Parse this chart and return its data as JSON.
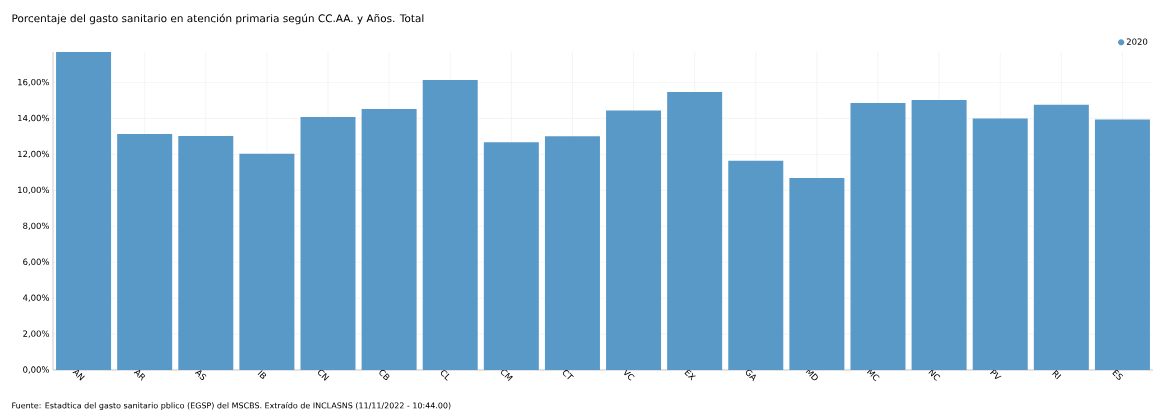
{
  "chart_data": {
    "type": "bar",
    "title": "Porcentaje del gasto sanitario en atención primaria según CC.AA. y Años. Total",
    "categories": [
      "AN",
      "AR",
      "AS",
      "IB",
      "CN",
      "CB",
      "CL",
      "CM",
      "CT",
      "VC",
      "EX",
      "GA",
      "MD",
      "MC",
      "NC",
      "PV",
      "RI",
      "ES"
    ],
    "series": [
      {
        "name": "2020",
        "color": "#5899c7",
        "values": [
          17.7,
          13.13,
          13.03,
          12.04,
          14.08,
          14.53,
          16.14,
          12.68,
          13.01,
          14.45,
          15.48,
          11.65,
          10.68,
          14.86,
          15.03,
          14.0,
          14.76,
          13.94
        ]
      }
    ],
    "ylim": [
      0,
      17.7
    ],
    "yticks": [
      {
        "value": 0,
        "label": "0,00%"
      },
      {
        "value": 2,
        "label": "2,00%"
      },
      {
        "value": 4,
        "label": "4,00%"
      },
      {
        "value": 6,
        "label": "6,00%"
      },
      {
        "value": 8,
        "label": "8,00%"
      },
      {
        "value": 10,
        "label": "10,00%"
      },
      {
        "value": 12,
        "label": "12,00%"
      },
      {
        "value": 14,
        "label": "14,00%"
      },
      {
        "value": 16,
        "label": "16,00%"
      }
    ],
    "grid": true,
    "legend": "top right",
    "annotations": [
      "Fuente: Estadtica del gasto sanitario pblico (EGSP) del MSCBS. Extraído de INCLASNS (11/11/2022 - 10:44.00)"
    ]
  }
}
